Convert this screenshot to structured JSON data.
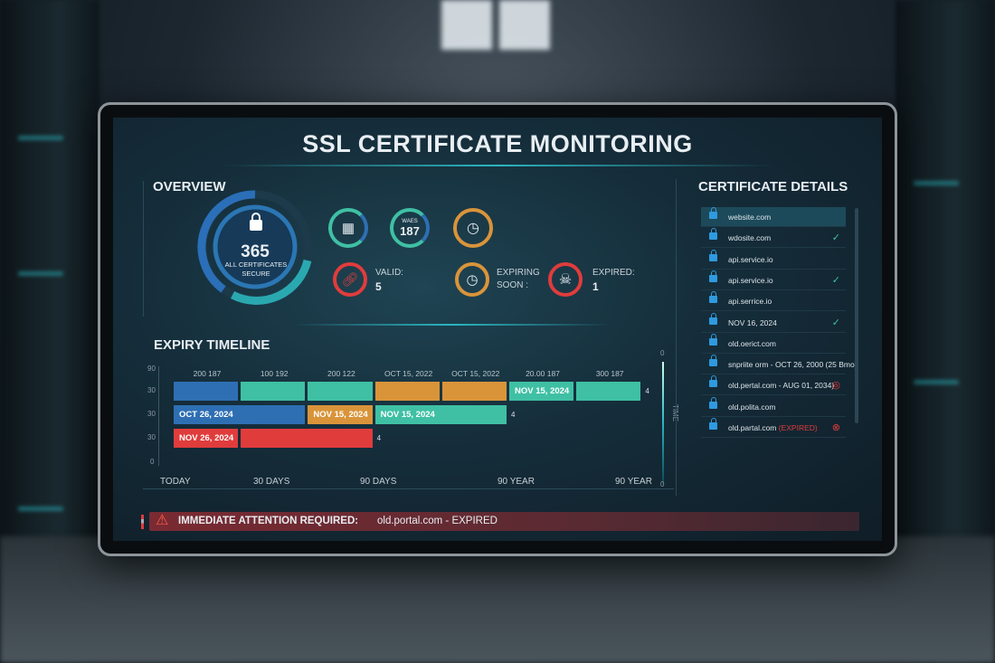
{
  "title": "SSL CERTIFICATE MONITORING",
  "overview": {
    "heading": "OVERVIEW",
    "total": "365",
    "total_label": "ALL CERTIFICATES SECURE",
    "stat_187_label": "WAES",
    "stat_187": "187",
    "valid_label": "VALID:",
    "valid": "5",
    "expiring_label": "EXPIRING SOON :",
    "expired_label": "EXPIRED:",
    "expired": "1"
  },
  "timeline": {
    "heading": "EXPIRY TIMELINE",
    "y_ticks": [
      "90",
      "30",
      "30",
      "30",
      "0"
    ],
    "top_labels": [
      "200 187",
      "100 192",
      "200 122",
      "OCT 15, 2022",
      "OCT 15, 2022",
      "20.00 187",
      "300 187"
    ],
    "row1": [
      {
        "label": "",
        "color": "#2e6fb3"
      },
      {
        "label": "",
        "color": "#3fc0a4"
      },
      {
        "label": "",
        "color": "#3fc0a4"
      },
      {
        "label": "",
        "color": "#d9943a"
      },
      {
        "label": "",
        "color": "#d9943a"
      },
      {
        "label": "NOV 15, 2024",
        "color": "#3fc0a4"
      },
      {
        "label": "",
        "color": "#3fc0a4"
      }
    ],
    "row2": [
      {
        "label": "OCT 26, 2024",
        "color": "#2e6fb3"
      },
      {
        "label": "NOV 15, 2024",
        "color": "#d9943a"
      },
      {
        "label": "NOV 15, 2024",
        "color": "#3fc0a4"
      }
    ],
    "row3": [
      {
        "label": "NOV 26, 2024",
        "color": "#e03c3c"
      },
      {
        "label": "",
        "color": "#e03c3c"
      }
    ],
    "row_ends": [
      "4",
      "4",
      "4"
    ],
    "x_labels": [
      "TODAY",
      "30 DAYS",
      "90 DAYS",
      "90 YEAR",
      "90 YEAR"
    ],
    "side_label": "TIME",
    "side_top": "0",
    "side_bottom": "0"
  },
  "details": {
    "heading": "CERTIFICATE DETAILS",
    "items": [
      {
        "name": "website.com",
        "status": ""
      },
      {
        "name": "wdosite.com",
        "status": "✓"
      },
      {
        "name": "api.service.io",
        "status": ""
      },
      {
        "name": "api.service.io",
        "status": "✓"
      },
      {
        "name": "api.serrice.io",
        "status": ""
      },
      {
        "name": "NOV 16, 2024",
        "status": "✓"
      },
      {
        "name": "old.oerict.com",
        "status": ""
      },
      {
        "name": "snpriite orm - OCT 26, 2000 (25 Bmo)",
        "status": ""
      },
      {
        "name": "old.pertal.com - AUG 01, 2034)",
        "status": "◎"
      },
      {
        "name": "old.polita.com",
        "status": ""
      },
      {
        "name": "old.partal.com",
        "suffix": "(EXPIRED)",
        "status": "⊗"
      }
    ]
  },
  "alert": {
    "text": "IMMEDIATE ATTENTION REQUIRED:",
    "detail": "old.portal.com - EXPIRED"
  },
  "colors": {
    "teal": "#3fc0a4",
    "blue": "#2e6fb3",
    "orange": "#d9943a",
    "red": "#e03c3c"
  }
}
